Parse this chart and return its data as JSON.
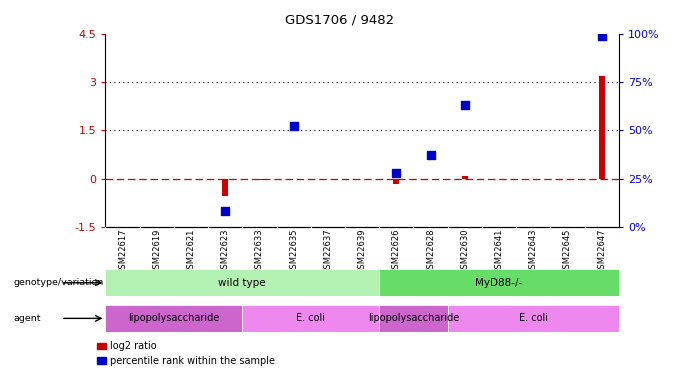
{
  "title": "GDS1706 / 9482",
  "samples": [
    "GSM22617",
    "GSM22619",
    "GSM22621",
    "GSM22623",
    "GSM22633",
    "GSM22635",
    "GSM22637",
    "GSM22639",
    "GSM22626",
    "GSM22628",
    "GSM22630",
    "GSM22641",
    "GSM22643",
    "GSM22645",
    "GSM22647"
  ],
  "log2_ratio": [
    0,
    0,
    0,
    -0.55,
    -0.05,
    0,
    0,
    0,
    -0.18,
    0,
    0.07,
    0,
    0,
    0,
    3.2
  ],
  "percentile": [
    null,
    null,
    null,
    8,
    null,
    52,
    null,
    null,
    28,
    37,
    63,
    null,
    null,
    null,
    99
  ],
  "left_yticks": [
    -1.5,
    0,
    1.5,
    3,
    4.5
  ],
  "right_yticks": [
    0,
    25,
    50,
    75,
    100
  ],
  "ylim_left": [
    -1.5,
    4.5
  ],
  "ylim_right": [
    0,
    100
  ],
  "hline_dashed": 0,
  "hlines_dotted": [
    1.5,
    3.0
  ],
  "genotype_groups": [
    {
      "label": "wild type",
      "start": 0,
      "end": 8,
      "color": "#b3f0b3"
    },
    {
      "label": "MyD88-/-",
      "start": 8,
      "end": 15,
      "color": "#66dd66"
    }
  ],
  "agent_groups": [
    {
      "label": "lipopolysaccharide",
      "start": 0,
      "end": 4,
      "color": "#cc66cc"
    },
    {
      "label": "E. coli",
      "start": 4,
      "end": 8,
      "color": "#ee88ee"
    },
    {
      "label": "lipopolysaccharide",
      "start": 8,
      "end": 10,
      "color": "#cc66cc"
    },
    {
      "label": "E. coli",
      "start": 10,
      "end": 15,
      "color": "#ee88ee"
    }
  ],
  "bar_color_red": "#cc0000",
  "marker_color_blue": "#0000cc",
  "dashed_line_color": "#cc0000",
  "dotted_line_color": "#000000",
  "bg_color": "#ffffff",
  "tick_label_color_left": "#cc0000",
  "tick_label_color_right": "#0000cc",
  "legend_log2": "log2 ratio",
  "legend_pct": "percentile rank within the sample",
  "red_bar_width": 0.18,
  "marker_size": 40
}
